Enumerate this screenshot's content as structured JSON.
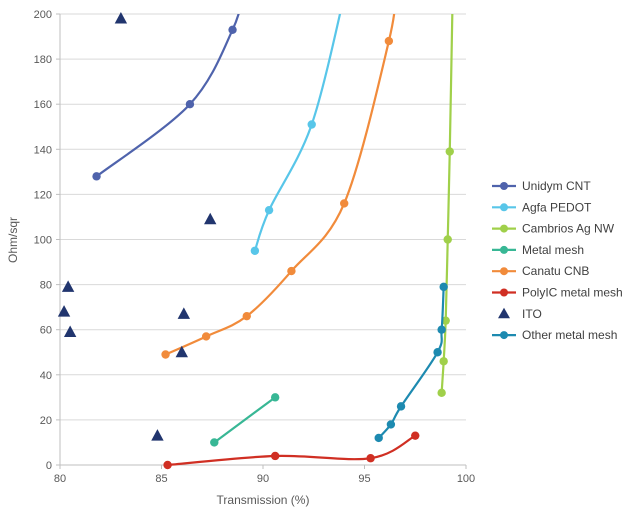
{
  "chart_data": {
    "type": "scatter",
    "title": "",
    "xlabel": "Transmission (%)",
    "ylabel": "Ohm/sqr",
    "xlim": [
      80,
      100
    ],
    "ylim": [
      0,
      200
    ],
    "x_ticks": [
      80,
      85,
      90,
      95,
      100
    ],
    "y_ticks": [
      0,
      20,
      40,
      60,
      80,
      100,
      120,
      140,
      160,
      180,
      200
    ],
    "grid": "horizontal",
    "legend_position": "right",
    "style": {
      "grid_color": "#d9d9d9",
      "axis_color": "#bfbfbf",
      "background": "#ffffff"
    },
    "series": [
      {
        "name": "Unidym CNT",
        "color": "#4f63ac",
        "marker": "circle",
        "points": [
          [
            81.8,
            128
          ],
          [
            86.4,
            160
          ],
          [
            88.5,
            193
          ]
        ],
        "extend_to": [
          89.1,
          212
        ]
      },
      {
        "name": "Agfa PEDOT",
        "color": "#58c6e9",
        "marker": "circle",
        "points": [
          [
            89.6,
            95
          ],
          [
            90.3,
            113
          ],
          [
            92.4,
            151
          ]
        ],
        "extend_to": [
          94.1,
          212
        ]
      },
      {
        "name": "Cambrios Ag NW",
        "color": "#a0d04a",
        "marker": "circle",
        "points": [
          [
            98.8,
            32
          ],
          [
            98.9,
            46
          ],
          [
            99.0,
            64
          ],
          [
            99.1,
            100
          ],
          [
            99.2,
            139
          ]
        ],
        "extend_to": [
          99.35,
          212
        ]
      },
      {
        "name": "Metal mesh",
        "color": "#38b795",
        "marker": "circle",
        "points": [
          [
            87.6,
            10
          ],
          [
            90.6,
            30
          ]
        ]
      },
      {
        "name": "Canatu CNB",
        "color": "#f18b3b",
        "marker": "circle",
        "points": [
          [
            85.2,
            49
          ],
          [
            87.2,
            57
          ],
          [
            89.2,
            66
          ],
          [
            91.4,
            86
          ],
          [
            94.0,
            116
          ],
          [
            96.2,
            188
          ]
        ],
        "extend_to": [
          96.55,
          212
        ]
      },
      {
        "name": "PolyIC metal mesh",
        "color": "#d02f23",
        "marker": "circle",
        "points": [
          [
            85.3,
            0
          ],
          [
            90.6,
            4
          ],
          [
            95.3,
            3
          ],
          [
            97.5,
            13
          ]
        ]
      },
      {
        "name": "ITO",
        "color": "#21356e",
        "marker": "triangle",
        "line": false,
        "points": [
          [
            83.0,
            198
          ],
          [
            80.4,
            79
          ],
          [
            80.2,
            68
          ],
          [
            80.5,
            59
          ],
          [
            84.8,
            13
          ],
          [
            86.0,
            50
          ],
          [
            86.1,
            67
          ],
          [
            87.4,
            109
          ]
        ]
      },
      {
        "name": "Other metal mesh",
        "color": "#1d8ab0",
        "marker": "circle",
        "points": [
          [
            95.7,
            12
          ],
          [
            96.3,
            18
          ],
          [
            96.8,
            26
          ],
          [
            98.6,
            50
          ],
          [
            98.8,
            60
          ],
          [
            98.9,
            79
          ]
        ]
      }
    ]
  }
}
